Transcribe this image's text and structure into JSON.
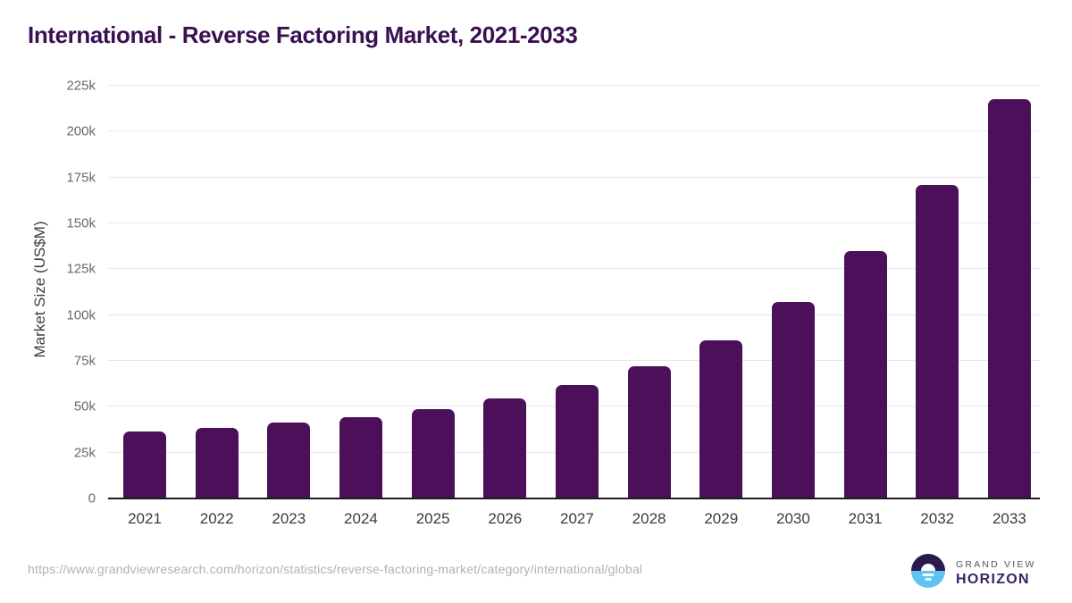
{
  "title": "International - Reverse Factoring Market, 2021-2033",
  "chart_data": {
    "type": "bar",
    "title": "International - Reverse Factoring Market, 2021-2033",
    "xlabel": "",
    "ylabel": "Market Size (US$M)",
    "categories": [
      "2021",
      "2022",
      "2023",
      "2024",
      "2025",
      "2026",
      "2027",
      "2028",
      "2029",
      "2030",
      "2031",
      "2032",
      "2033"
    ],
    "values": [
      36600,
      38600,
      41500,
      44500,
      48900,
      54400,
      61700,
      72000,
      86100,
      107200,
      134800,
      170800,
      217800
    ],
    "ylim": [
      0,
      225000
    ],
    "ytick_values": [
      0,
      25000,
      50000,
      75000,
      100000,
      125000,
      150000,
      175000,
      200000,
      225000
    ],
    "ytick_labels": [
      "0",
      "25k",
      "50k",
      "75k",
      "100k",
      "125k",
      "150k",
      "175k",
      "200k",
      "225k"
    ],
    "grid": true,
    "legend": "none",
    "bar_color": "#4b1059"
  },
  "footer": {
    "source_url": "https://www.grandviewresearch.com/horizon/statistics/reverse-factoring-market/category/international/global",
    "logo": {
      "line1": "GRAND VIEW",
      "line2": "HORIZON"
    }
  },
  "colors": {
    "bar": "#4b1059",
    "title_text": "#3b1053",
    "gridline": "#e8e8e8",
    "axis_line": "#1d1d1d",
    "x_tick_text": "#3b3b3b",
    "y_tick_text": "#6a6a6a",
    "url_text": "#b2b2b2",
    "logo_navy": "#2c1a4e",
    "logo_blue": "#5fc3f0"
  }
}
